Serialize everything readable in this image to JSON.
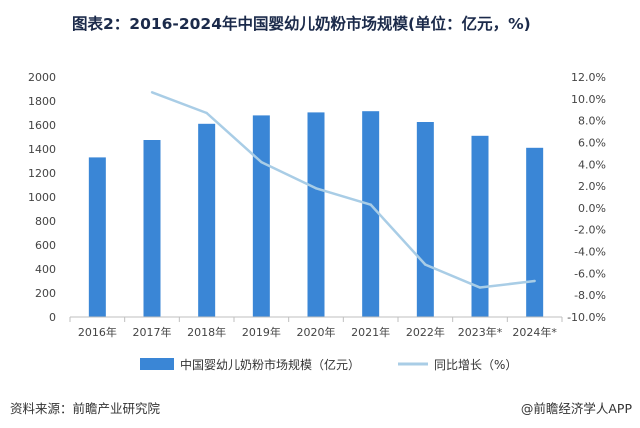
{
  "title": "图表2：2016-2024年中国婴幼儿奶粉市场规模(单位：亿元，%)",
  "source": "资料来源：前瞻产业研究院",
  "watermark": "@前瞻经济学人APP",
  "colors": {
    "bar": "#3a86d6",
    "line": "#a9cde6"
  },
  "chart_data": {
    "type": "bar",
    "categories": [
      "2016年",
      "2017年",
      "2018年",
      "2019年",
      "2020年",
      "2021年",
      "2022年",
      "2023年*",
      "2024年*"
    ],
    "series": [
      {
        "name": "中国婴幼儿奶粉市场规模（亿元）",
        "type": "bar",
        "axis": "left",
        "values": [
          1330,
          1475,
          1610,
          1680,
          1705,
          1715,
          1625,
          1510,
          1410
        ]
      },
      {
        "name": "同比增长（%）",
        "type": "line",
        "axis": "right",
        "values": [
          null,
          10.6,
          8.7,
          4.2,
          1.8,
          0.3,
          -5.2,
          -7.3,
          -6.7
        ]
      }
    ],
    "y_left": {
      "min": 0,
      "max": 2000,
      "step": 200,
      "ticks": [
        "0",
        "200",
        "400",
        "600",
        "800",
        "1000",
        "1200",
        "1400",
        "1600",
        "1800",
        "2000"
      ]
    },
    "y_right": {
      "min": -10,
      "max": 12,
      "step": 2,
      "ticks": [
        "-10.0%",
        "-8.0%",
        "-6.0%",
        "-4.0%",
        "-2.0%",
        "0.0%",
        "2.0%",
        "4.0%",
        "6.0%",
        "8.0%",
        "10.0%",
        "12.0%"
      ]
    },
    "grid": false,
    "legend_position": "bottom"
  }
}
